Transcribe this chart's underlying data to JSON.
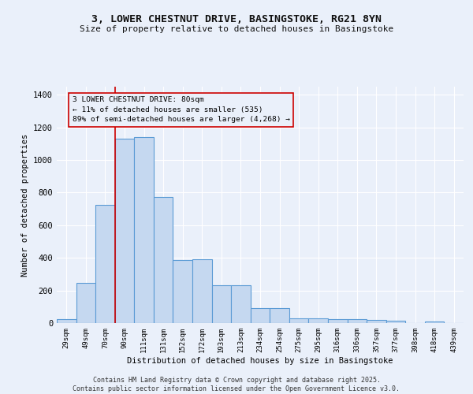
{
  "title1": "3, LOWER CHESTNUT DRIVE, BASINGSTOKE, RG21 8YN",
  "title2": "Size of property relative to detached houses in Basingstoke",
  "xlabel": "Distribution of detached houses by size in Basingstoke",
  "ylabel": "Number of detached properties",
  "categories": [
    "29sqm",
    "49sqm",
    "70sqm",
    "90sqm",
    "111sqm",
    "131sqm",
    "152sqm",
    "172sqm",
    "193sqm",
    "213sqm",
    "234sqm",
    "254sqm",
    "275sqm",
    "295sqm",
    "316sqm",
    "336sqm",
    "357sqm",
    "377sqm",
    "398sqm",
    "418sqm",
    "439sqm"
  ],
  "values": [
    25,
    245,
    725,
    1130,
    1140,
    775,
    385,
    390,
    230,
    230,
    90,
    90,
    30,
    30,
    25,
    25,
    20,
    15,
    0,
    10,
    0
  ],
  "bar_color": "#c5d8f0",
  "bar_edge_color": "#5b9bd5",
  "bar_linewidth": 0.8,
  "vline_color": "#cc0000",
  "vline_x_index": 2.5,
  "annotation_box_text": "3 LOWER CHESTNUT DRIVE: 80sqm\n← 11% of detached houses are smaller (535)\n89% of semi-detached houses are larger (4,268) →",
  "box_edge_color": "#cc0000",
  "ylim": [
    0,
    1450
  ],
  "yticks": [
    0,
    200,
    400,
    600,
    800,
    1000,
    1200,
    1400
  ],
  "background_color": "#eaf0fa",
  "grid_color": "#ffffff",
  "footer1": "Contains HM Land Registry data © Crown copyright and database right 2025.",
  "footer2": "Contains public sector information licensed under the Open Government Licence v3.0."
}
